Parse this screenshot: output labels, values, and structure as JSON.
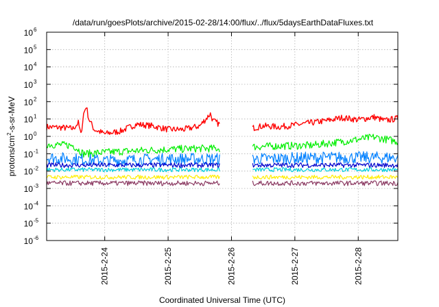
{
  "chart_data": {
    "type": "line",
    "title": "/data/run/goesPlots/archive/2015-02-28/14:00/flux/../flux/5daysEarthDataFluxes.txt",
    "xlabel": "Coordinated Universal Time (UTC)",
    "ylabel": {
      "prefix": "protons/cm",
      "sup": "2",
      "suffix": "-s-sr-MeV"
    },
    "yscale": "log",
    "ylim_exp": [
      -6,
      6
    ],
    "y_ticks": [
      {
        "base": "10",
        "exp": "6"
      },
      {
        "base": "10",
        "exp": "5"
      },
      {
        "base": "10",
        "exp": "4"
      },
      {
        "base": "10",
        "exp": "3"
      },
      {
        "base": "10",
        "exp": "2"
      },
      {
        "base": "10",
        "exp": "1"
      },
      {
        "base": "10",
        "exp": "0"
      },
      {
        "base": "10",
        "exp": "-1"
      },
      {
        "base": "10",
        "exp": "-2"
      },
      {
        "base": "10",
        "exp": "-3"
      },
      {
        "base": "10",
        "exp": "-4"
      },
      {
        "base": "10",
        "exp": "-5"
      },
      {
        "base": "10",
        "exp": "-6"
      }
    ],
    "xlim": [
      "2015-02-23 02:00",
      "2015-02-28 15:00"
    ],
    "x_ticks": [
      "2015-2-24",
      "2015-2-25",
      "2015-2-26",
      "2015-2-27",
      "2015-2-28"
    ],
    "grid": true,
    "data_gap": [
      "2015-02-25 19:30",
      "2015-02-26 08:00"
    ],
    "series_colors": [
      "#ff0000",
      "#00ee00",
      "#0080ff",
      "#00ccdd",
      "#0000cc",
      "#ffee00",
      "#8b3a62"
    ],
    "series": [
      {
        "color": "#ff0000",
        "values": [
          [
            "2015-02-23 02:00",
            3.5
          ],
          [
            "2015-02-23 08:00",
            3.2
          ],
          [
            "2015-02-23 12:00",
            2.8
          ],
          [
            "2015-02-23 14:00",
            6
          ],
          [
            "2015-02-23 15:00",
            1.2
          ],
          [
            "2015-02-23 16:00",
            20
          ],
          [
            "2015-02-23 17:00",
            55
          ],
          [
            "2015-02-23 18:00",
            10
          ],
          [
            "2015-02-23 20:00",
            2.5
          ],
          [
            "2015-02-24 00:00",
            1.4
          ],
          [
            "2015-02-24 06:00",
            2
          ],
          [
            "2015-02-24 12:00",
            5
          ],
          [
            "2015-02-24 18:00",
            4
          ],
          [
            "2015-02-25 00:00",
            2.5
          ],
          [
            "2015-02-25 06:00",
            2.5
          ],
          [
            "2015-02-25 12:00",
            4
          ],
          [
            "2015-02-25 16:00",
            20
          ],
          [
            "2015-02-25 17:00",
            8
          ],
          [
            "2015-02-25 19:30",
            5
          ],
          [
            "2015-02-26 08:00",
            3
          ],
          [
            "2015-02-26 12:00",
            4
          ],
          [
            "2015-02-26 18:00",
            3.5
          ],
          [
            "2015-02-27 00:00",
            4.5
          ],
          [
            "2015-02-27 06:00",
            6
          ],
          [
            "2015-02-27 12:00",
            8
          ],
          [
            "2015-02-27 18:00",
            12
          ],
          [
            "2015-02-28 00:00",
            9
          ],
          [
            "2015-02-28 06:00",
            13
          ],
          [
            "2015-02-28 10:00",
            8
          ],
          [
            "2015-02-28 15:00",
            11
          ]
        ]
      },
      {
        "color": "#00ee00",
        "values": [
          [
            "2015-02-23 02:00",
            0.35
          ],
          [
            "2015-02-23 12:00",
            0.3
          ],
          [
            "2015-02-23 16:00",
            0.1
          ],
          [
            "2015-02-24 00:00",
            0.12
          ],
          [
            "2015-02-24 12:00",
            0.15
          ],
          [
            "2015-02-25 00:00",
            0.18
          ],
          [
            "2015-02-25 12:00",
            0.2
          ],
          [
            "2015-02-25 19:30",
            0.2
          ],
          [
            "2015-02-26 08:00",
            0.25
          ],
          [
            "2015-02-26 18:00",
            0.28
          ],
          [
            "2015-02-27 06:00",
            0.3
          ],
          [
            "2015-02-27 18:00",
            0.5
          ],
          [
            "2015-02-28 06:00",
            0.9
          ],
          [
            "2015-02-28 15:00",
            0.5
          ]
        ]
      },
      {
        "color": "#0080ff",
        "values": [
          [
            "2015-02-23 02:00",
            0.06
          ],
          [
            "2015-02-24 00:00",
            0.04
          ],
          [
            "2015-02-25 00:00",
            0.05
          ],
          [
            "2015-02-25 19:30",
            0.05
          ],
          [
            "2015-02-26 08:00",
            0.05
          ],
          [
            "2015-02-27 12:00",
            0.06
          ],
          [
            "2015-02-28 15:00",
            0.06
          ]
        ]
      },
      {
        "color": "#00ccdd",
        "values": [
          [
            "2015-02-23 02:00",
            0.012
          ],
          [
            "2015-02-25 19:30",
            0.012
          ],
          [
            "2015-02-26 08:00",
            0.012
          ],
          [
            "2015-02-28 15:00",
            0.012
          ]
        ]
      },
      {
        "color": "#0000cc",
        "values": [
          [
            "2015-02-23 02:00",
            0.022
          ],
          [
            "2015-02-25 19:30",
            0.022
          ],
          [
            "2015-02-26 08:00",
            0.022
          ],
          [
            "2015-02-28 15:00",
            0.022
          ]
        ]
      },
      {
        "color": "#ffee00",
        "values": [
          [
            "2015-02-23 02:00",
            0.0045
          ],
          [
            "2015-02-25 19:30",
            0.0045
          ],
          [
            "2015-02-26 08:00",
            0.0045
          ],
          [
            "2015-02-28 15:00",
            0.0045
          ]
        ]
      },
      {
        "color": "#8b3a62",
        "values": [
          [
            "2015-02-23 02:00",
            0.002
          ],
          [
            "2015-02-25 19:30",
            0.002
          ],
          [
            "2015-02-26 08:00",
            0.002
          ],
          [
            "2015-02-28 15:00",
            0.002
          ]
        ]
      }
    ]
  }
}
